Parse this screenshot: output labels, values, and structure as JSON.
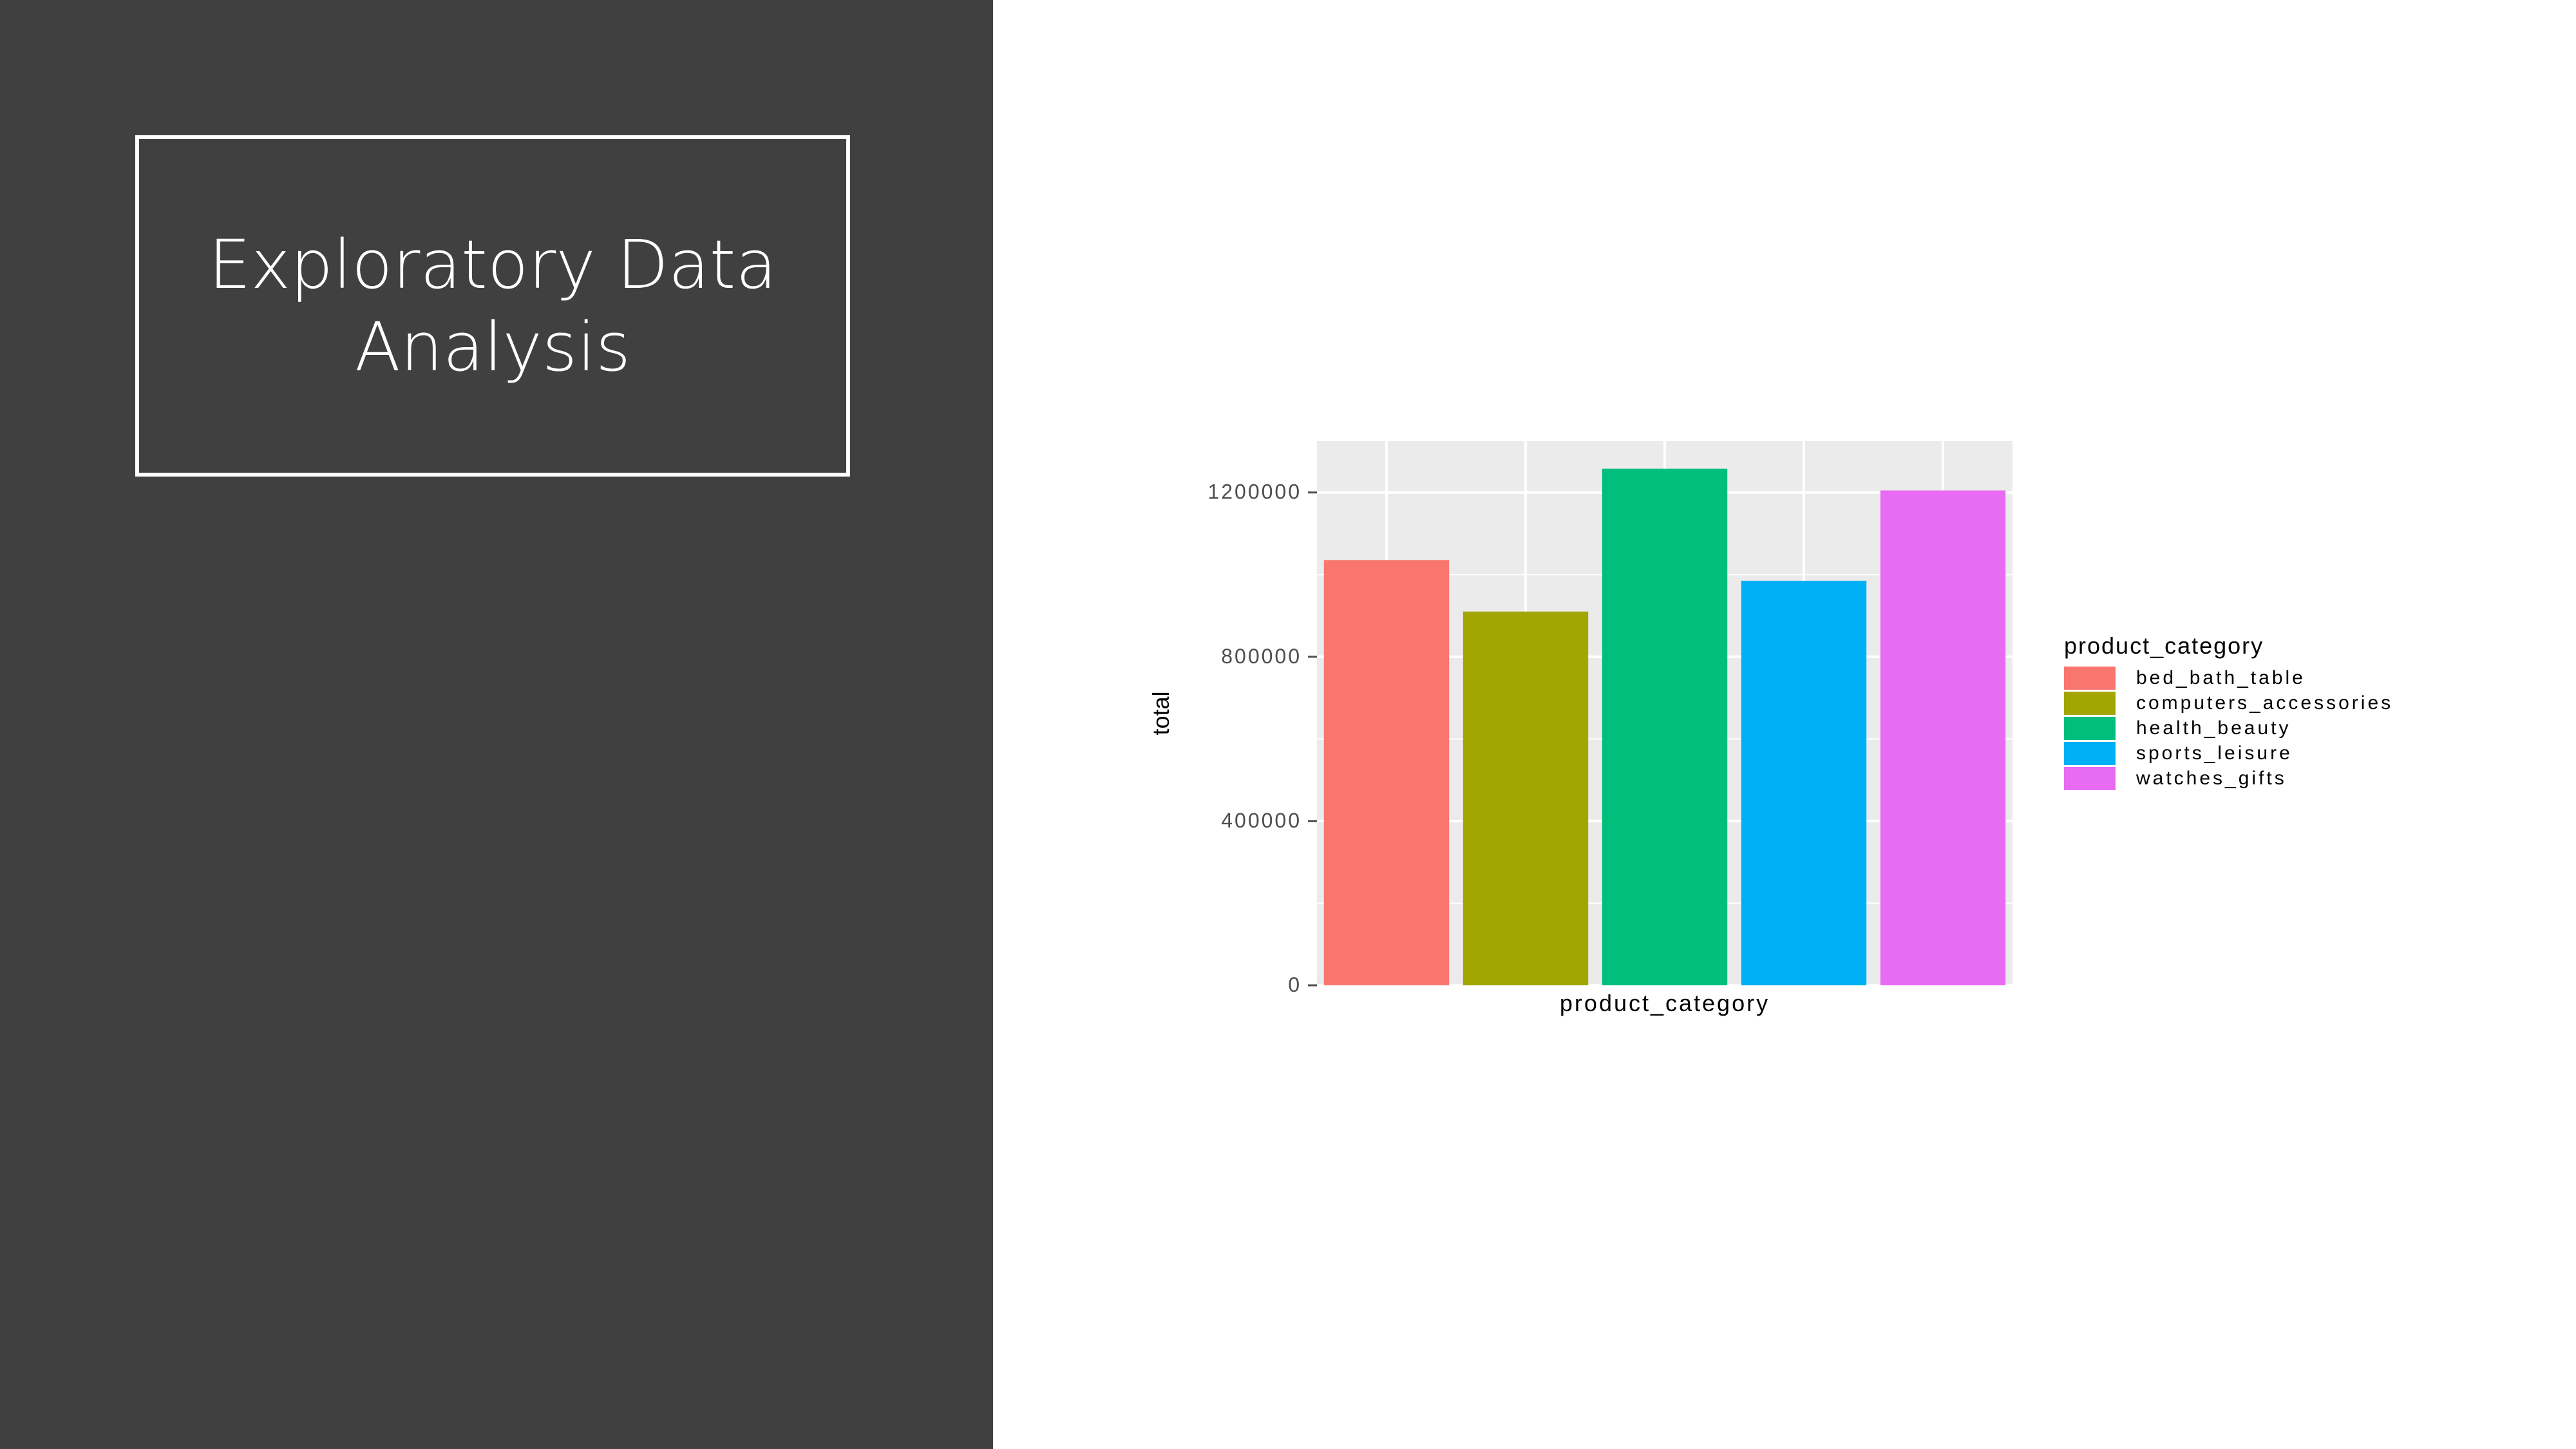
{
  "slide": {
    "title": "Exploratory Data Analysis",
    "background_left": "#404040"
  },
  "chart_data": {
    "type": "bar",
    "title": "",
    "xlabel": "product_category",
    "ylabel": "total",
    "categories": [
      "bed_bath_table",
      "computers_accessories",
      "health_beauty",
      "sports_leisure",
      "watches_gifts"
    ],
    "values": [
      1035000,
      910000,
      1258000,
      985000,
      1205000
    ],
    "colors": [
      "#F8766D",
      "#A3A500",
      "#00BF7D",
      "#00B0F6",
      "#E76BF3"
    ],
    "ylim": [
      0,
      1325000
    ],
    "yticks": [
      0,
      400000,
      800000,
      1200000
    ],
    "ytick_labels": [
      "0",
      "400000",
      "800000",
      "1200000"
    ],
    "grid": true,
    "panel_background": "#EBEBEB",
    "legend": {
      "title": "product_category",
      "placement": "right",
      "entries": [
        "bed_bath_table",
        "computers_accessories",
        "health_beauty",
        "sports_leisure",
        "watches_gifts"
      ]
    }
  }
}
